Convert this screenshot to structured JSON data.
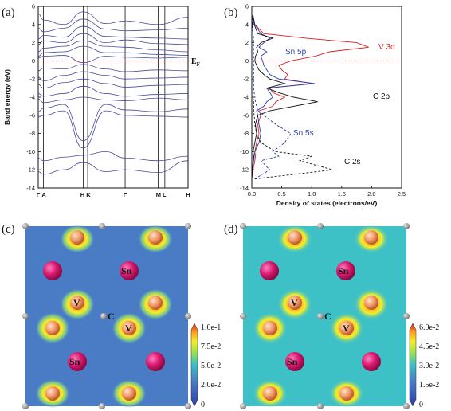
{
  "panels": {
    "a": "(a)",
    "b": "(b)",
    "c": "(c)",
    "d": "(d)"
  },
  "colors": {
    "band": "#4a4a9a",
    "fermi": "#e05050",
    "v3d": "#d62020",
    "sn5p": "#2a3ea8",
    "c2p": "#111111",
    "map_c_bg": "#4a7cc6",
    "map_d_bg": "#3ec1c6"
  },
  "chart_data": [
    {
      "type": "line",
      "panel": "a",
      "ylabel": "Band energy (eV)",
      "ylim": [
        -14,
        6
      ],
      "yticks": [
        6,
        4,
        2,
        0,
        -2,
        -4,
        -6,
        -8,
        -10,
        -12,
        -14
      ],
      "kpath": [
        "Γ A",
        "H K",
        "Γ",
        "M L",
        "H"
      ],
      "fermi_label_main": "E",
      "fermi_label_sub": "F",
      "fermi_level": 0,
      "series": [
        {
          "values": [
            -12.2,
            -12.5,
            -12.0,
            -11.2,
            -12.2,
            -12.0,
            -12.3,
            -11.0
          ]
        },
        {
          "values": [
            -10.7,
            -11.0,
            -10.6,
            -10.4,
            -10.0,
            -10.7,
            -11.0,
            -10.5
          ]
        },
        {
          "values": [
            -6.2,
            -6.0,
            -5.5,
            -9.6,
            -5.5,
            -6.0,
            -6.1,
            -6.2
          ]
        },
        {
          "values": [
            -5.6,
            -5.2,
            -4.8,
            -8.8,
            -4.8,
            -5.4,
            -5.6,
            -5.3
          ]
        },
        {
          "values": [
            -4.2,
            -4.6,
            -4.3,
            -4.0,
            -4.3,
            -4.4,
            -4.1,
            -4.3
          ]
        },
        {
          "values": [
            -3.6,
            -3.9,
            -3.6,
            -2.8,
            -3.6,
            -3.9,
            -3.7,
            -3.6
          ]
        },
        {
          "values": [
            -2.6,
            -3.0,
            -2.4,
            -2.0,
            -2.5,
            -2.9,
            -2.7,
            -2.6
          ]
        },
        {
          "values": [
            -1.8,
            -2.2,
            -1.6,
            -1.2,
            -1.6,
            -2.0,
            -1.9,
            -1.8
          ]
        },
        {
          "values": [
            -1.1,
            -0.8,
            -0.9,
            -0.4,
            -0.9,
            -1.2,
            -1.0,
            -1.1
          ]
        },
        {
          "values": [
            0.3,
            0.5,
            0.6,
            -0.2,
            0.5,
            0.4,
            0.3,
            0.4
          ]
        },
        {
          "values": [
            0.5,
            0.9,
            1.0,
            1.6,
            0.9,
            0.9,
            0.7,
            0.6
          ]
        },
        {
          "values": [
            1.0,
            1.4,
            1.6,
            2.2,
            1.6,
            1.5,
            1.2,
            1.0
          ]
        },
        {
          "values": [
            1.8,
            2.2,
            2.0,
            3.0,
            2.0,
            2.3,
            1.9,
            1.8
          ]
        },
        {
          "values": [
            2.4,
            2.8,
            2.6,
            3.8,
            2.7,
            2.6,
            2.5,
            2.4
          ]
        },
        {
          "values": [
            3.6,
            3.2,
            3.6,
            4.6,
            3.5,
            3.3,
            3.4,
            3.6
          ]
        },
        {
          "values": [
            5.2,
            4.5,
            4.0,
            5.4,
            4.1,
            4.4,
            4.0,
            4.8
          ]
        }
      ]
    },
    {
      "type": "line",
      "panel": "b",
      "xlabel": "Density of states (electrons/eV)",
      "xlim": [
        0,
        2.5
      ],
      "ylim": [
        -14,
        6
      ],
      "xticks": [
        0.0,
        0.5,
        1.0,
        1.5,
        2.0,
        2.5
      ],
      "yticks": [
        6,
        4,
        2,
        0,
        -2,
        -4,
        -6,
        -8,
        -10,
        -12,
        -14
      ],
      "fermi_level": 0,
      "y": [
        -13,
        -12,
        -11,
        -10.5,
        -10,
        -9,
        -8,
        -7,
        -6,
        -5.5,
        -5,
        -4.5,
        -4,
        -3.5,
        -3,
        -2.5,
        -2,
        -1.5,
        -1,
        -0.5,
        0,
        0.5,
        1,
        1.5,
        2,
        2.5,
        3,
        4,
        5
      ],
      "series": [
        {
          "name": "V 3d",
          "style": "solid",
          "values": [
            0,
            0.02,
            0.05,
            0.06,
            0.05,
            0.08,
            0.12,
            0.1,
            0.15,
            0.12,
            0.35,
            0.4,
            0.55,
            0.35,
            0.3,
            1.0,
            0.55,
            0.6,
            0.5,
            0.45,
            0.65,
            1.05,
            1.3,
            1.95,
            1.75,
            0.9,
            0.2,
            0.05,
            0.02
          ]
        },
        {
          "name": "Sn 5p",
          "style": "solid",
          "values": [
            0,
            0.01,
            0.03,
            0.04,
            0.05,
            0.12,
            0.15,
            0.12,
            0.1,
            0.08,
            0.2,
            0.25,
            0.35,
            0.3,
            0.25,
            1.05,
            0.45,
            0.3,
            0.25,
            0.2,
            0.18,
            0.15,
            0.25,
            0.12,
            0.2,
            0.3,
            0.15,
            0.05,
            0.02
          ]
        },
        {
          "name": "C 2p",
          "style": "solid",
          "values": [
            0,
            0.01,
            0.02,
            0.03,
            0.02,
            0.05,
            0.08,
            0.06,
            0.1,
            0.3,
            0.7,
            1.1,
            0.7,
            0.45,
            0.25,
            0.55,
            0.3,
            0.2,
            0.12,
            0.08,
            0.05,
            0.06,
            0.1,
            0.08,
            0.15,
            0.35,
            0.1,
            0.04,
            0.02
          ]
        },
        {
          "name": "Sn 5s",
          "style": "dashed",
          "values": [
            0.05,
            0.3,
            0.15,
            0.45,
            0.35,
            0.55,
            0.65,
            0.4,
            0.2,
            0.1,
            0.08,
            0.06,
            0.05,
            0.04,
            0.03,
            0.03,
            0.03,
            0.03,
            0.03,
            0.03,
            0.03,
            0.03,
            0.03,
            0.03,
            0.03,
            0.03,
            0.02,
            0.02,
            0.01
          ]
        },
        {
          "name": "C 2s",
          "style": "dashed",
          "values": [
            0.05,
            1.35,
            0.8,
            1.0,
            0.4,
            0.15,
            0.08,
            0.05,
            0.04,
            0.03,
            0.03,
            0.03,
            0.02,
            0.02,
            0.02,
            0.02,
            0.02,
            0.02,
            0.02,
            0.02,
            0.02,
            0.02,
            0.02,
            0.02,
            0.02,
            0.02,
            0.02,
            0.01,
            0.01
          ]
        }
      ],
      "annotations": [
        "V 3d",
        "Sn 5p",
        "C 2p",
        "Sn 5s",
        "C 2s"
      ]
    },
    {
      "type": "heatmap",
      "panel": "c",
      "colorbar_ticks": [
        "1.0e-1",
        "7.5e-2",
        "5.0e-2",
        "2.0e-2",
        "0"
      ],
      "atom_labels": [
        "Sn",
        "V",
        "C",
        "V",
        "Sn"
      ]
    },
    {
      "type": "heatmap",
      "panel": "d",
      "colorbar_ticks": [
        "6.0e-2",
        "4.5e-2",
        "3.0e-2",
        "1.5e-2",
        "0"
      ],
      "atom_labels": [
        "Sn",
        "V",
        "C",
        "V",
        "Sn"
      ]
    }
  ]
}
